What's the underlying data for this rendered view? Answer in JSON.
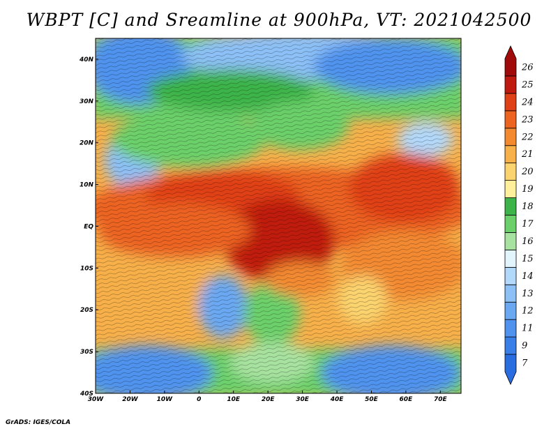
{
  "title": "WBPT [C] and Sreamline at 900hPa, VT: 2021042500",
  "credit": "GrADS: IGES/COLA",
  "map": {
    "lon_range": [
      -30,
      76
    ],
    "lat_range": [
      -40,
      45
    ],
    "lon_ticks": [
      {
        "value": -30,
        "label": "30W"
      },
      {
        "value": -20,
        "label": "20W"
      },
      {
        "value": -10,
        "label": "10W"
      },
      {
        "value": 0,
        "label": "0"
      },
      {
        "value": 10,
        "label": "10E"
      },
      {
        "value": 20,
        "label": "20E"
      },
      {
        "value": 30,
        "label": "30E"
      },
      {
        "value": 40,
        "label": "40E"
      },
      {
        "value": 50,
        "label": "50E"
      },
      {
        "value": 60,
        "label": "60E"
      },
      {
        "value": 70,
        "label": "70E"
      }
    ],
    "lat_ticks": [
      {
        "value": 40,
        "label": "40N"
      },
      {
        "value": 30,
        "label": "30N"
      },
      {
        "value": 20,
        "label": "20N"
      },
      {
        "value": 10,
        "label": "10N"
      },
      {
        "value": 0,
        "label": "EQ"
      },
      {
        "value": -10,
        "label": "10S"
      },
      {
        "value": -20,
        "label": "20S"
      },
      {
        "value": -30,
        "label": "30S"
      },
      {
        "value": -40,
        "label": "40S"
      }
    ]
  },
  "colorbar": {
    "levels": [
      "7",
      "9",
      "11",
      "12",
      "13",
      "14",
      "15",
      "16",
      "17",
      "18",
      "19",
      "20",
      "21",
      "22",
      "23",
      "24",
      "25",
      "26"
    ],
    "colors": [
      "#2a6de0",
      "#3a7fe8",
      "#4f93ee",
      "#6aa8f2",
      "#8cc0f6",
      "#b2d8fa",
      "#e2f4fc",
      "#a8e2a0",
      "#6cd06a",
      "#3cb44a",
      "#fff09c",
      "#fbd470",
      "#f7b04a",
      "#f38a30",
      "#ec6420",
      "#e04018",
      "#c01a10",
      "#a00a0a"
    ]
  }
}
